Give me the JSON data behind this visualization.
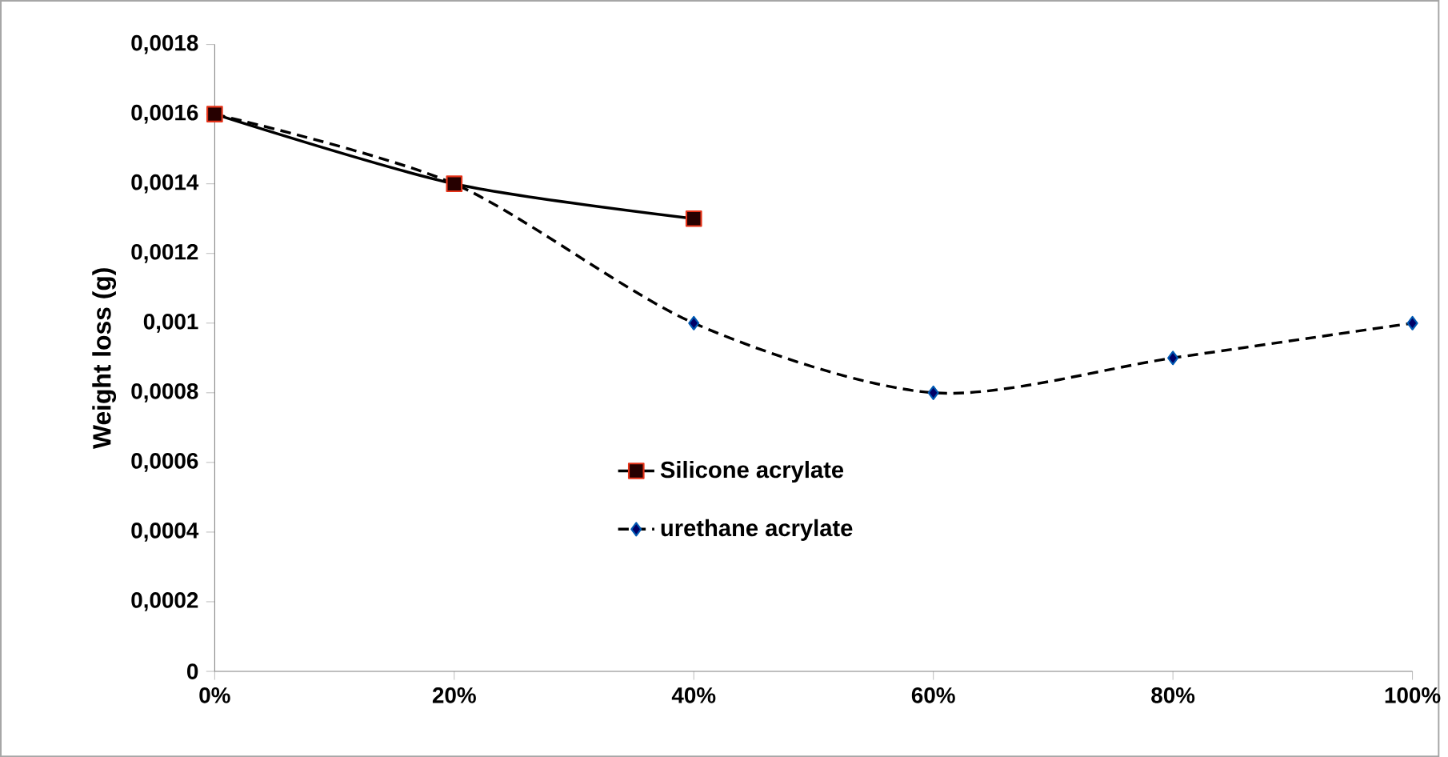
{
  "chart_data": {
    "type": "line",
    "ylabel": "Weight loss (g)",
    "x": [
      0,
      20,
      40,
      60,
      80,
      100
    ],
    "series": [
      {
        "name": "Silicone acrylate",
        "color": "#000000",
        "marker": "square",
        "line_style": "solid",
        "x": [
          0,
          20,
          40
        ],
        "values": [
          0.0016,
          0.0014,
          0.0013
        ]
      },
      {
        "name": "urethane acrylate",
        "color": "#000000",
        "marker": "diamond",
        "line_style": "dashed",
        "values": [
          0.0016,
          0.0014,
          0.001,
          0.0008,
          0.0009,
          0.001
        ]
      }
    ],
    "xlim": [
      0,
      100
    ],
    "xticks": [
      {
        "value": 0,
        "label": "0%"
      },
      {
        "value": 20,
        "label": "20%"
      },
      {
        "value": 40,
        "label": "40%"
      },
      {
        "value": 60,
        "label": "60%"
      },
      {
        "value": 80,
        "label": "80%"
      },
      {
        "value": 100,
        "label": "100%"
      }
    ],
    "ylim": [
      0,
      0.0018
    ],
    "yticks": [
      0,
      {
        "value": 0.0002,
        "label": "0,0002"
      },
      {
        "value": 0.0004,
        "label": "0,0004"
      },
      {
        "value": 0.0006,
        "label": "0,0006"
      },
      {
        "value": 0.0008,
        "label": "0,0008"
      },
      {
        "value": 0.001,
        "label": "0,001"
      },
      {
        "value": 0.0012,
        "label": "0,0012"
      },
      {
        "value": 0.0014,
        "label": "0,0014"
      },
      {
        "value": 0.0016,
        "label": "0,0016"
      },
      {
        "value": 0.0018,
        "label": "0,0018"
      }
    ],
    "grid": false,
    "legend": "bottom"
  }
}
